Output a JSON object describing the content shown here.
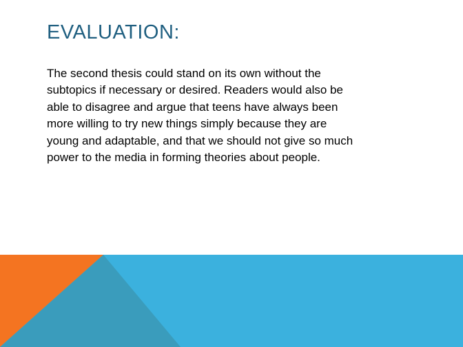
{
  "slide": {
    "title": "EVALUATION:",
    "body": "The second thesis could stand on its own without the\nsubtopics if necessary or desired.  Readers would also be\nable to disagree and argue that teens have always been\nmore willing to try new things simply because they are\nyoung and adaptable, and that we should not give so much\npower to the media in forming theories about people."
  },
  "colors": {
    "title": "#1f5f80",
    "band_blue": "#3bb1de",
    "band_orange": "#f47421",
    "band_overlap": "#3a9cbc"
  }
}
